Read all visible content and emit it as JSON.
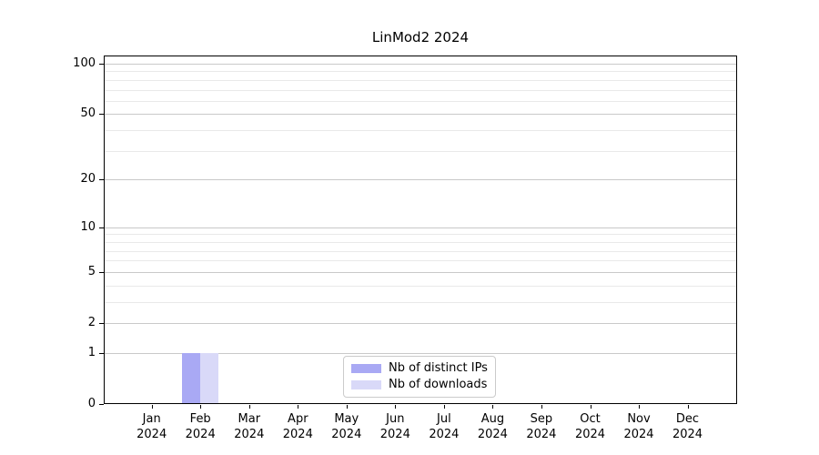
{
  "chart_data": {
    "type": "bar",
    "title": "LinMod2 2024",
    "year_label": "2024",
    "categories": [
      "Jan",
      "Feb",
      "Mar",
      "Apr",
      "May",
      "Jun",
      "Jul",
      "Aug",
      "Sep",
      "Oct",
      "Nov",
      "Dec"
    ],
    "series": [
      {
        "name": "Nb of distinct IPs",
        "color": "#a9a9f4",
        "values": [
          0,
          1,
          0,
          0,
          0,
          0,
          0,
          0,
          0,
          0,
          0,
          0
        ]
      },
      {
        "name": "Nb of downloads",
        "color": "#d9d9f8",
        "values": [
          0,
          1,
          0,
          0,
          0,
          0,
          0,
          0,
          0,
          0,
          0,
          0
        ]
      }
    ],
    "y_axis": {
      "scale": "log1p",
      "ticks": [
        0,
        1,
        2,
        5,
        10,
        20,
        50,
        100
      ],
      "minor_ticks": [
        3,
        4,
        6,
        7,
        8,
        9,
        30,
        40,
        60,
        70,
        80,
        90
      ],
      "range": [
        0,
        112
      ]
    },
    "x_axis": {
      "tick_years_shown": true
    },
    "grid": {
      "major_color": "#c9c9c9",
      "minor_color": "#e9e9e9"
    },
    "legend": {
      "position": "lower center"
    },
    "spine_color": "#000000",
    "background": "#ffffff"
  }
}
